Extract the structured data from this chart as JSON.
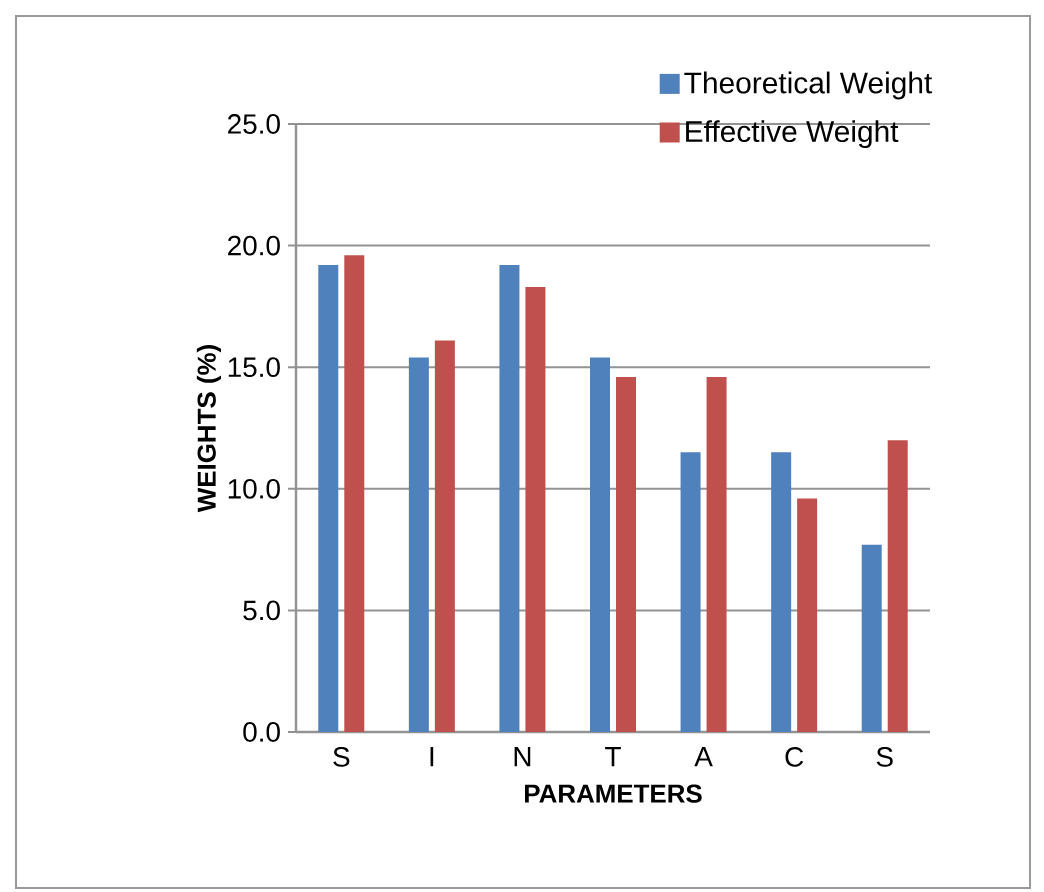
{
  "chart_data": {
    "type": "bar",
    "xlabel": "PARAMETERS",
    "ylabel": "WEIGHTS (%)",
    "categories": [
      "S",
      "I",
      "N",
      "T",
      "A",
      "C",
      "S"
    ],
    "series": [
      {
        "name": "Theoretical Weight",
        "color": "#4f81bd",
        "values": [
          19.2,
          15.4,
          19.2,
          15.4,
          11.5,
          11.5,
          7.7
        ]
      },
      {
        "name": "Effective Weight",
        "color": "#c0504d",
        "values": [
          19.6,
          16.1,
          18.3,
          14.6,
          14.6,
          9.6,
          12.0
        ]
      }
    ],
    "ylim": [
      0,
      25
    ],
    "yticks": [
      {
        "value": 0,
        "label": "0.0"
      },
      {
        "value": 5,
        "label": "5.0"
      },
      {
        "value": 10,
        "label": "10.0"
      },
      {
        "value": 15,
        "label": "15.0"
      },
      {
        "value": 20,
        "label": "20.0"
      },
      {
        "value": 25,
        "label": "25.0"
      }
    ],
    "grid": "y",
    "legend": "top right"
  }
}
